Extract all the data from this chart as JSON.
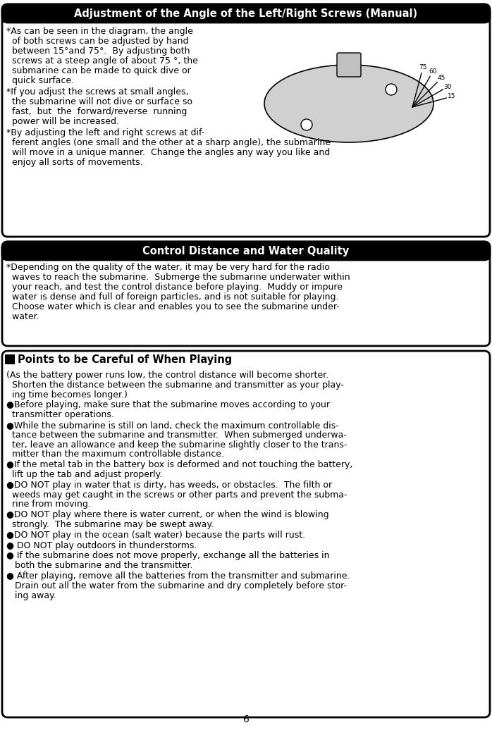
{
  "title1": "Adjustment of the Angle of the Left/Right Screws (Manual)",
  "title2": "Control Distance and Water Quality",
  "title3": "Points to be Careful of When Playing",
  "section1_text": [
    "*As can be seen in the diagram, the angle\n  of both screws can be adjusted by hand\n  between 15°and 75°.  By adjusting both\n  screws at a steep angle of about 75 °, the\n  submarine can be made to quick dive or\n  quick surface.",
    "*If you adjust the screws at small angles,\n  the submarine will not dive or surface so\n  fast,  but  the  forward/reverse  running\n  power will be increased.",
    "*By adjusting the left and right screws at dif-\n  ferent angles (one small and the other at a sharp angle), the submarine\n  will move in a unique manner.  Change the angles any way you like and\n  enjoy all sorts of movements."
  ],
  "section2_text": "*Depending on the quality of the water, it may be very hard for the radio\n  waves to reach the submarine.  Submerge the submarine underwater within\n  your reach, and test the control distance before playing.  Muddy or impure\n  water is dense and full of foreign particles, and is not suitable for playing.\n  Choose water which is clear and enables you to see the submarine under-\n  water.",
  "section3_lines": [
    "(As the battery power runs low, the control distance will become shorter.\n  Shorten the distance between the submarine and transmitter as your play-\n  ing time becomes longer.)",
    "Before playing, make sure that the submarine moves according to your\n  transmitter operations.",
    "While the submarine is still on land, check the maximum controllable dis-\n  tance between the submarine and transmitter.  When submerged underwa-\n  ter, leave an allowance and keep the submarine slightly closer to the trans-\n  mitter than the maximum controllable distance.",
    "If the metal tab in the battery box is deformed and not touching the battery,\n  lift up the tab and adjust properly.",
    "DO NOT play in water that is dirty, has weeds, or obstacles.  The filth or\n  weeds may get caught in the screws or other parts and prevent the subma-\n  rine from moving.",
    "DO NOT play where there is water current, or when the wind is blowing\n  strongly.  The submarine may be swept away.",
    "DO NOT play in the ocean (salt water) because the parts will rust.",
    "DO NOT play outdoors in thunderstorms.",
    "If the submarine does not move properly, exchange all the batteries in\n  both the submarine and the transmitter.",
    "After playing, remove all the batteries from the transmitter and submarine.\n  Drain out all the water from the submarine and dry completely before stor-\n  ing away."
  ],
  "footer": "6",
  "bg_color": "#ffffff",
  "header_bg": "#000000",
  "header_fg": "#ffffff",
  "body_fg": "#000000",
  "border_color": "#000000"
}
